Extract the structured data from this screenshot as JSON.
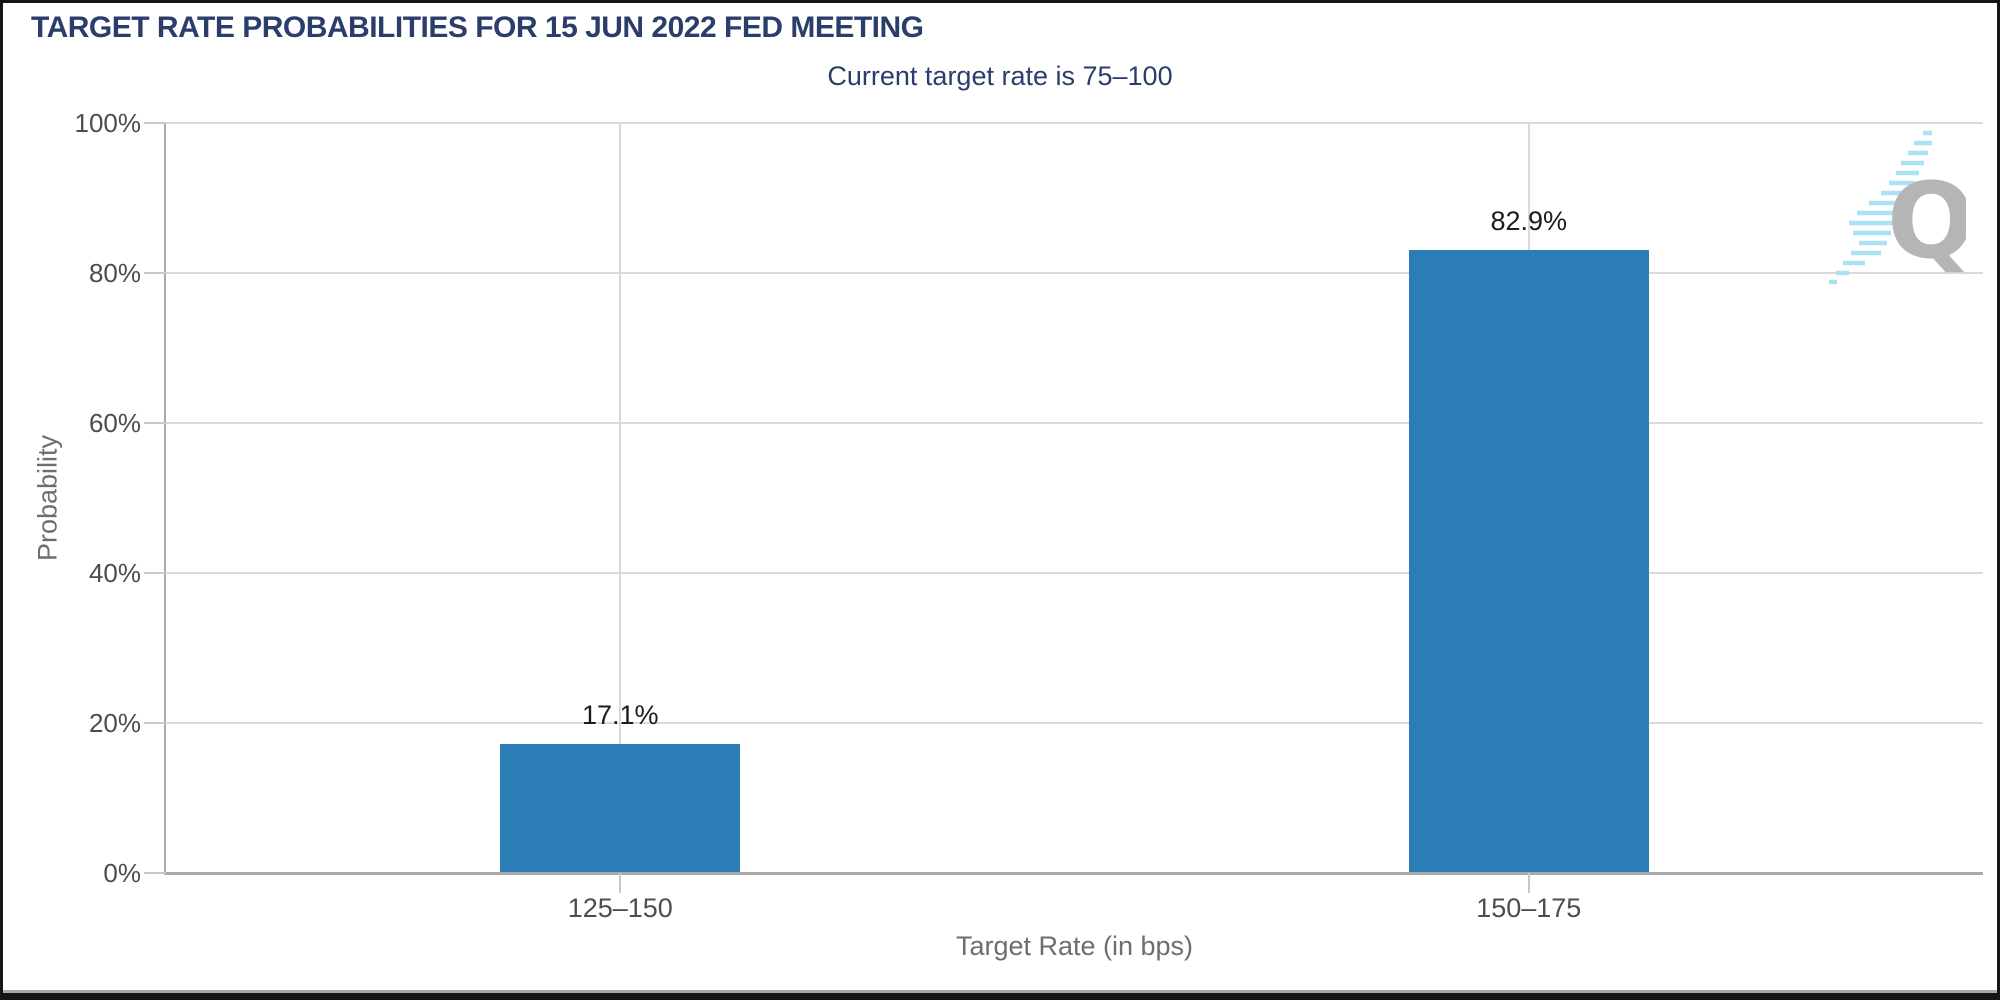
{
  "header": {
    "title": "TARGET RATE PROBABILITIES FOR 15 JUN 2022 FED MEETING",
    "subtitle": "Current target rate is 75–100"
  },
  "chart_data": {
    "type": "bar",
    "title": "TARGET RATE PROBABILITIES FOR 15 JUN 2022 FED MEETING",
    "subtitle": "Current target rate is 75–100",
    "categories": [
      "125–150",
      "150–175"
    ],
    "values": [
      17.1,
      82.9
    ],
    "value_labels": [
      "17.1%",
      "82.9%"
    ],
    "xlabel": "Target Rate (in bps)",
    "ylabel": "Probability",
    "ylim": [
      0,
      100
    ],
    "ytick_labels": [
      "100%",
      "80%",
      "60%",
      "40%",
      "20%",
      "0%"
    ],
    "grid": true,
    "legend": "none",
    "bar_color": "#2b7db6"
  },
  "watermark": {
    "letter": "Q"
  },
  "colors": {
    "title_navy": "#2b3e6b",
    "bar_blue": "#2b7db6",
    "tick_label_gray": "#4d4d4d",
    "axis_title_gray": "#6e6e6e",
    "gridline_gray": "#dadada",
    "axis_line_gray": "#a9a9a9",
    "watermark_gray": "#b5b5b5",
    "watermark_blue": "#a9e2f5"
  }
}
